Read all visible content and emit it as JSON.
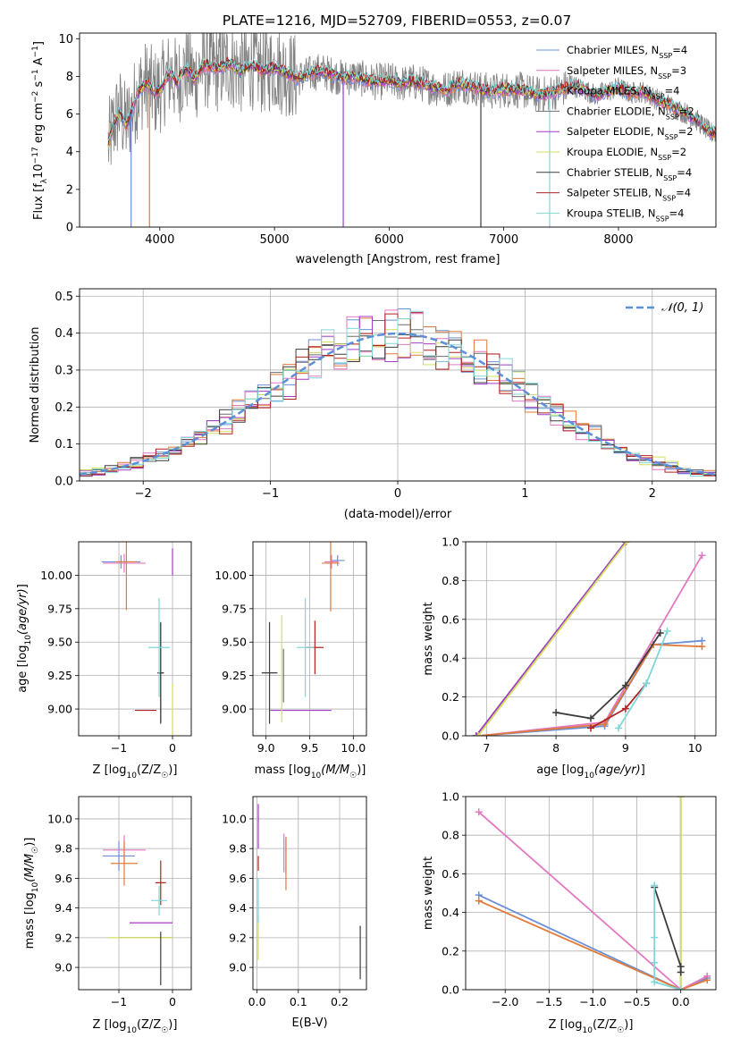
{
  "page": {
    "title": "PLATE=1216, MJD=52709, FIBERID=0553, z=0.07"
  },
  "colors": {
    "Chabrier MILES": "#6b8fd6",
    "Salpeter MILES": "#e377c2",
    "Kroupa MILES": "#e07b39",
    "Chabrier ELODIE": "#6e6e6e",
    "Salpeter ELODIE": "#a33cc8",
    "Kroupa ELODIE": "#d2e05a",
    "Chabrier STELIB": "#3c3c3c",
    "Salpeter STELIB": "#b22222",
    "Kroupa STELIB": "#7fd6d8"
  },
  "chart_data": [
    {
      "id": "spectrum",
      "type": "line",
      "title": "PLATE=1216, MJD=52709, FIBERID=0553, z=0.07",
      "xlabel": "wavelength [Angstrom, rest frame]",
      "ylabel": "Flux [f_λ 10^-17 erg cm^-2 s^-1 A^-1]",
      "xlim": [
        3300,
        8850
      ],
      "ylim": [
        0,
        10.3
      ],
      "xticks": [
        4000,
        5000,
        6000,
        7000,
        8000
      ],
      "yticks": [
        0,
        2,
        4,
        6,
        8,
        10
      ],
      "grid": false,
      "legend_position": "top-right",
      "legend": [
        "Chabrier MILES, N_SSP=4",
        "Salpeter MILES, N_SSP=3",
        "Kroupa MILES, N_SSP=4",
        "Chabrier ELODIE, N_SSP=2",
        "Salpeter ELODIE, N_SSP=2",
        "Kroupa ELODIE, N_SSP=2",
        "Chabrier STELIB, N_SSP=4",
        "Salpeter STELIB, N_SSP=4",
        "Kroupa STELIB, N_SSP=4"
      ],
      "x_range": [
        3550,
        8850
      ],
      "model_envelope": [
        [
          3550,
          4.3
        ],
        [
          3600,
          5.5
        ],
        [
          3650,
          6.2
        ],
        [
          3700,
          5.4
        ],
        [
          3750,
          6.0
        ],
        [
          3800,
          7.0
        ],
        [
          3850,
          7.5
        ],
        [
          3900,
          7.6
        ],
        [
          3950,
          7.1
        ],
        [
          4000,
          7.3
        ],
        [
          4050,
          7.8
        ],
        [
          4100,
          8.2
        ],
        [
          4150,
          7.6
        ],
        [
          4200,
          8.2
        ],
        [
          4250,
          8.4
        ],
        [
          4300,
          7.8
        ],
        [
          4350,
          8.4
        ],
        [
          4400,
          8.6
        ],
        [
          4500,
          8.4
        ],
        [
          4600,
          8.7
        ],
        [
          4700,
          8.3
        ],
        [
          4800,
          8.6
        ],
        [
          4900,
          8.3
        ],
        [
          5000,
          8.5
        ],
        [
          5100,
          8.2
        ],
        [
          5200,
          7.9
        ],
        [
          5300,
          8.1
        ],
        [
          5400,
          8.3
        ],
        [
          5500,
          8.1
        ],
        [
          5600,
          7.9
        ],
        [
          5700,
          8.0
        ],
        [
          5800,
          7.8
        ],
        [
          5900,
          7.7
        ],
        [
          6000,
          7.8
        ],
        [
          6100,
          7.6
        ],
        [
          6200,
          7.7
        ],
        [
          6300,
          7.6
        ],
        [
          6400,
          7.4
        ],
        [
          6500,
          7.3
        ],
        [
          6600,
          7.6
        ],
        [
          6700,
          7.5
        ],
        [
          6800,
          7.3
        ],
        [
          6900,
          7.2
        ],
        [
          7000,
          7.3
        ],
        [
          7100,
          7.3
        ],
        [
          7200,
          7.2
        ],
        [
          7300,
          7.0
        ],
        [
          7400,
          7.1
        ],
        [
          7500,
          7.3
        ],
        [
          7600,
          7.5
        ],
        [
          7700,
          7.3
        ],
        [
          7800,
          7.0
        ],
        [
          7900,
          7.2
        ],
        [
          8000,
          7.4
        ],
        [
          8100,
          7.1
        ],
        [
          8200,
          7.2
        ],
        [
          8300,
          6.9
        ],
        [
          8400,
          6.6
        ],
        [
          8500,
          6.3
        ],
        [
          8600,
          6.0
        ],
        [
          8700,
          5.6
        ],
        [
          8800,
          5.0
        ]
      ],
      "spikes": [
        [
          3750,
          0
        ],
        [
          3910,
          0
        ],
        [
          5600,
          0
        ],
        [
          6800,
          0
        ],
        [
          7400,
          0
        ]
      ]
    },
    {
      "id": "residual-histogram",
      "type": "line",
      "xlabel": "(data-model)/error",
      "ylabel": "Normed distribution",
      "xlim": [
        -2.5,
        2.5
      ],
      "ylim": [
        0,
        0.52
      ],
      "xticks": [
        -2,
        -1,
        0,
        1,
        2
      ],
      "yticks": [
        0.0,
        0.1,
        0.2,
        0.3,
        0.4,
        0.5
      ],
      "grid": true,
      "legend_position": "top-right",
      "legend": [
        "𝒩(0, 1)"
      ],
      "bin_width": 0.1,
      "bin_start": -2.5
    },
    {
      "id": "age-vs-z",
      "type": "scatter",
      "xlabel": "Z [log10(Z/Z☉)]",
      "ylabel": "age [log10(age/yr)]",
      "xlim": [
        -1.75,
        0.35
      ],
      "ylim": [
        8.8,
        10.25
      ],
      "xticks": [
        -1,
        0
      ],
      "yticks": [
        9.0,
        9.25,
        9.5,
        9.75,
        10.0
      ],
      "grid": true,
      "points": [
        {
          "series": "Chabrier MILES",
          "x": -0.96,
          "y": 10.1,
          "ex": 0.36,
          "ey": 0.05
        },
        {
          "series": "Salpeter MILES",
          "x": -0.9,
          "y": 10.09,
          "ex": 0.4,
          "ey": 0.07
        },
        {
          "series": "Kroupa MILES",
          "x": -0.86,
          "y": 10.1,
          "ex": 0.2,
          "ey": 0.36
        },
        {
          "series": "Chabrier ELODIE",
          "x": -0.22,
          "y": 9.27,
          "ex": 0.06,
          "ey": 0.37
        },
        {
          "series": "Salpeter ELODIE",
          "x": 0.0,
          "y": 10.1,
          "ex": 0.0,
          "ey": 0.1
        },
        {
          "series": "Kroupa ELODIE",
          "x": 0.0,
          "y": 8.99,
          "ex": 0.0,
          "ey": 0.2
        },
        {
          "series": "Chabrier STELIB",
          "x": -0.22,
          "y": 9.27,
          "ex": 0.06,
          "ey": 0.38
        },
        {
          "series": "Salpeter STELIB",
          "x": -0.5,
          "y": 8.99,
          "ex": 0.2,
          "ey": 0.0
        },
        {
          "series": "Kroupa STELIB",
          "x": -0.25,
          "y": 9.46,
          "ex": 0.2,
          "ey": 0.37
        }
      ]
    },
    {
      "id": "age-vs-mass",
      "type": "scatter",
      "xlabel": "mass [log10(M/M☉)]",
      "ylabel": "",
      "xlim": [
        8.85,
        10.15
      ],
      "ylim": [
        8.8,
        10.25
      ],
      "xticks": [
        9.0,
        9.5,
        10.0
      ],
      "yticks": [
        9.0,
        9.25,
        9.5,
        9.75,
        10.0
      ],
      "grid": true,
      "points": [
        {
          "series": "Chabrier MILES",
          "x": 9.82,
          "y": 10.11,
          "ex": 0.08,
          "ey": 0.04
        },
        {
          "series": "Salpeter MILES",
          "x": 9.75,
          "y": 10.1,
          "ex": 0.08,
          "ey": 0.05
        },
        {
          "series": "Kroupa MILES",
          "x": 9.74,
          "y": 10.09,
          "ex": 0.1,
          "ey": 0.36
        },
        {
          "series": "Chabrier ELODIE",
          "x": 9.2,
          "y": 9.25,
          "ex": 0.0,
          "ey": 0.2
        },
        {
          "series": "Salpeter ELODIE",
          "x": 9.4,
          "y": 8.99,
          "ex": 0.35,
          "ey": 0.0
        },
        {
          "series": "Kroupa ELODIE",
          "x": 9.18,
          "y": 9.3,
          "ex": 0.0,
          "ey": 0.4
        },
        {
          "series": "Chabrier STELIB",
          "x": 9.04,
          "y": 9.27,
          "ex": 0.09,
          "ey": 0.38
        },
        {
          "series": "Salpeter STELIB",
          "x": 9.56,
          "y": 9.46,
          "ex": 0.1,
          "ey": 0.2
        },
        {
          "series": "Kroupa STELIB",
          "x": 9.45,
          "y": 9.46,
          "ex": 0.1,
          "ey": 0.37
        }
      ]
    },
    {
      "id": "weight-vs-age",
      "type": "line",
      "xlabel": "age [log10(age/yr)]",
      "ylabel": "mass weight",
      "xlim": [
        6.7,
        10.3
      ],
      "ylim": [
        0,
        1.0
      ],
      "xticks": [
        7,
        8,
        9,
        10
      ],
      "yticks": [
        0.0,
        0.2,
        0.4,
        0.6,
        0.8,
        1.0
      ],
      "grid": true,
      "series": [
        {
          "series": "Chabrier MILES",
          "points": [
            [
              6.9,
              0.0
            ],
            [
              8.7,
              0.05
            ],
            [
              9.4,
              0.47
            ],
            [
              10.1,
              0.49
            ]
          ]
        },
        {
          "series": "Salpeter MILES",
          "points": [
            [
              6.9,
              0.0
            ],
            [
              8.7,
              0.07
            ],
            [
              10.1,
              0.93
            ]
          ]
        },
        {
          "series": "Kroupa MILES",
          "points": [
            [
              6.9,
              0.0
            ],
            [
              8.7,
              0.06
            ],
            [
              9.4,
              0.47
            ],
            [
              10.1,
              0.46
            ]
          ]
        },
        {
          "series": "Chabrier ELODIE",
          "points": [
            [
              6.85,
              0.0
            ],
            [
              9.0,
              1.0
            ]
          ]
        },
        {
          "series": "Salpeter ELODIE",
          "points": [
            [
              6.85,
              0.0
            ],
            [
              9.0,
              1.0
            ]
          ]
        },
        {
          "series": "Kroupa ELODIE",
          "points": [
            [
              6.88,
              0.0
            ],
            [
              9.02,
              1.0
            ]
          ]
        },
        {
          "series": "Chabrier STELIB",
          "points": [
            [
              8.0,
              0.12
            ],
            [
              8.5,
              0.09
            ],
            [
              9.0,
              0.26
            ],
            [
              9.5,
              0.53
            ]
          ]
        },
        {
          "series": "Salpeter STELIB",
          "points": [
            [
              8.5,
              0.04
            ],
            [
              9.0,
              0.14
            ],
            [
              9.3,
              0.27
            ]
          ]
        },
        {
          "series": "Kroupa STELIB",
          "points": [
            [
              8.9,
              0.04
            ],
            [
              9.3,
              0.27
            ],
            [
              9.6,
              0.54
            ]
          ]
        }
      ]
    },
    {
      "id": "mass-vs-z",
      "type": "scatter",
      "xlabel": "Z [log10(Z/Z☉)]",
      "ylabel": "mass [log10(M/M☉)]",
      "xlim": [
        -1.75,
        0.35
      ],
      "ylim": [
        8.85,
        10.15
      ],
      "xticks": [
        -1,
        0
      ],
      "yticks": [
        9.0,
        9.2,
        9.4,
        9.6,
        9.8,
        10.0
      ],
      "grid": true,
      "points": [
        {
          "series": "Chabrier MILES",
          "x": -1.0,
          "y": 9.75,
          "ex": 0.3,
          "ey": 0.1
        },
        {
          "series": "Salpeter MILES",
          "x": -0.9,
          "y": 9.79,
          "ex": 0.4,
          "ey": 0.1
        },
        {
          "series": "Kroupa MILES",
          "x": -0.9,
          "y": 9.7,
          "ex": 0.25,
          "ey": 0.15
        },
        {
          "series": "Chabrier ELODIE",
          "x": -0.5,
          "y": 9.2,
          "ex": 0.5,
          "ey": 0.0
        },
        {
          "series": "Salpeter ELODIE",
          "x": -0.4,
          "y": 9.3,
          "ex": 0.4,
          "ey": 0.0
        },
        {
          "series": "Kroupa ELODIE",
          "x": -0.6,
          "y": 9.2,
          "ex": 0.6,
          "ey": 0.0
        },
        {
          "series": "Chabrier STELIB",
          "x": -0.22,
          "y": 9.06,
          "ex": 0.0,
          "ey": 0.18
        },
        {
          "series": "Salpeter STELIB",
          "x": -0.22,
          "y": 9.57,
          "ex": 0.1,
          "ey": 0.15
        },
        {
          "series": "Kroupa STELIB",
          "x": -0.25,
          "y": 9.45,
          "ex": 0.15,
          "ey": 0.1
        }
      ]
    },
    {
      "id": "mass-vs-ebv",
      "type": "scatter",
      "xlabel": "E(B-V)",
      "ylabel": "",
      "xlim": [
        -0.01,
        0.265
      ],
      "ylim": [
        8.85,
        10.15
      ],
      "xticks": [
        0.0,
        0.1,
        0.2
      ],
      "yticks": [
        9.0,
        9.2,
        9.4,
        9.6,
        9.8,
        10.0
      ],
      "grid": true,
      "points": [
        {
          "series": "Chabrier MILES",
          "x": 0.07,
          "y": 9.75,
          "ex": 0.0,
          "ey": 0.12
        },
        {
          "series": "Salpeter MILES",
          "x": 0.065,
          "y": 9.77,
          "ex": 0.0,
          "ey": 0.13
        },
        {
          "series": "Kroupa MILES",
          "x": 0.07,
          "y": 9.7,
          "ex": 0.0,
          "ey": 0.18
        },
        {
          "series": "Salpeter ELODIE",
          "x": 0.003,
          "y": 9.95,
          "ex": 0.0,
          "ey": 0.15
        },
        {
          "series": "Salpeter STELIB",
          "x": 0.003,
          "y": 9.7,
          "ex": 0.0,
          "ey": 0.05
        },
        {
          "series": "Kroupa ELODIE",
          "x": 0.003,
          "y": 9.2,
          "ex": 0.0,
          "ey": 0.15
        },
        {
          "series": "Kroupa STELIB",
          "x": 0.003,
          "y": 9.45,
          "ex": 0.0,
          "ey": 0.15
        },
        {
          "series": "Chabrier STELIB",
          "x": 0.25,
          "y": 9.1,
          "ex": 0.0,
          "ey": 0.18
        }
      ]
    },
    {
      "id": "weight-vs-z",
      "type": "line",
      "xlabel": "Z [log10(Z/Z☉)]",
      "ylabel": "mass weight",
      "xlim": [
        -2.45,
        0.4
      ],
      "ylim": [
        0,
        1.0
      ],
      "xticks": [
        -2.0,
        -1.5,
        -1.0,
        -0.5,
        0.0
      ],
      "yticks": [
        0.0,
        0.2,
        0.4,
        0.6,
        0.8,
        1.0
      ],
      "grid": true,
      "series": [
        {
          "series": "Chabrier MILES",
          "points": [
            [
              -2.3,
              0.49
            ],
            [
              0.0,
              0.0
            ],
            [
              0.3,
              0.06
            ]
          ]
        },
        {
          "series": "Salpeter MILES",
          "points": [
            [
              -2.3,
              0.92
            ],
            [
              0.0,
              0.0
            ],
            [
              0.3,
              0.07
            ]
          ]
        },
        {
          "series": "Kroupa MILES",
          "points": [
            [
              -2.3,
              0.46
            ],
            [
              0.0,
              0.0
            ],
            [
              0.3,
              0.05
            ]
          ]
        },
        {
          "series": "Chabrier ELODIE",
          "points": [
            [
              0.0,
              0.0
            ],
            [
              0.0,
              1.0
            ]
          ]
        },
        {
          "series": "Kroupa ELODIE",
          "points": [
            [
              0.0,
              0.0
            ],
            [
              0.0,
              1.0
            ]
          ]
        },
        {
          "series": "Chabrier STELIB",
          "points": [
            [
              -0.3,
              0.53
            ],
            [
              0.0,
              0.12
            ],
            [
              0.0,
              0.09
            ]
          ]
        },
        {
          "series": "Kroupa STELIB",
          "points": [
            [
              -0.3,
              0.54
            ],
            [
              -0.3,
              0.27
            ],
            [
              -0.3,
              0.14
            ],
            [
              -0.3,
              0.04
            ],
            [
              0.0,
              0.0
            ]
          ]
        }
      ]
    }
  ]
}
